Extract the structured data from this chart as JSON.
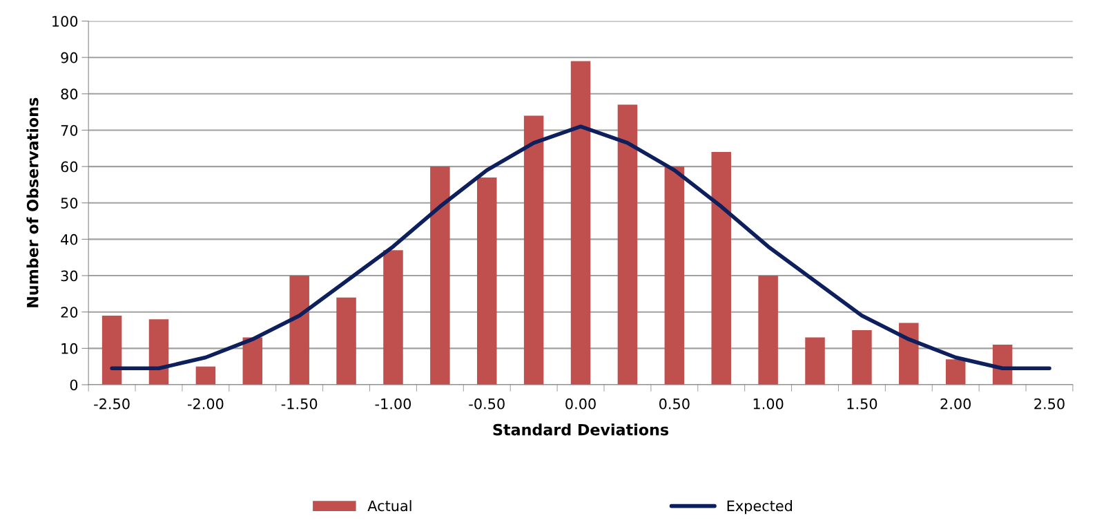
{
  "chart_data": {
    "type": "bar",
    "xlabel": "Standard Deviations",
    "ylabel": "Number of Observations",
    "categories": [
      "-2.50",
      null,
      "-2.00",
      null,
      "-1.50",
      null,
      "-1.00",
      null,
      "-0.50",
      null,
      "0.00",
      null,
      "0.50",
      null,
      "1.00",
      null,
      "1.50",
      null,
      "2.00",
      null,
      "2.50"
    ],
    "series": [
      {
        "name": "Actual",
        "color": "#c0504d",
        "values": [
          19,
          18,
          5,
          13,
          30,
          24,
          37,
          60,
          57,
          74,
          89,
          77,
          60,
          64,
          30,
          13,
          15,
          17,
          7,
          11,
          null
        ]
      },
      {
        "name": "Expected",
        "type": "line",
        "color": "#0d1f5c",
        "values": [
          4.5,
          4.5,
          7.5,
          12.5,
          19,
          28.5,
          38,
          49,
          59,
          66.5,
          71,
          66.5,
          59,
          49,
          38,
          28.5,
          19,
          12.5,
          7.5,
          4.5,
          4.5
        ]
      }
    ],
    "ylim": [
      0,
      100
    ],
    "yticks": [
      0,
      10,
      20,
      30,
      40,
      50,
      60,
      70,
      80,
      90,
      100
    ],
    "grid": "y",
    "legend": "bottom",
    "marker": "none",
    "line_style": "solid"
  }
}
